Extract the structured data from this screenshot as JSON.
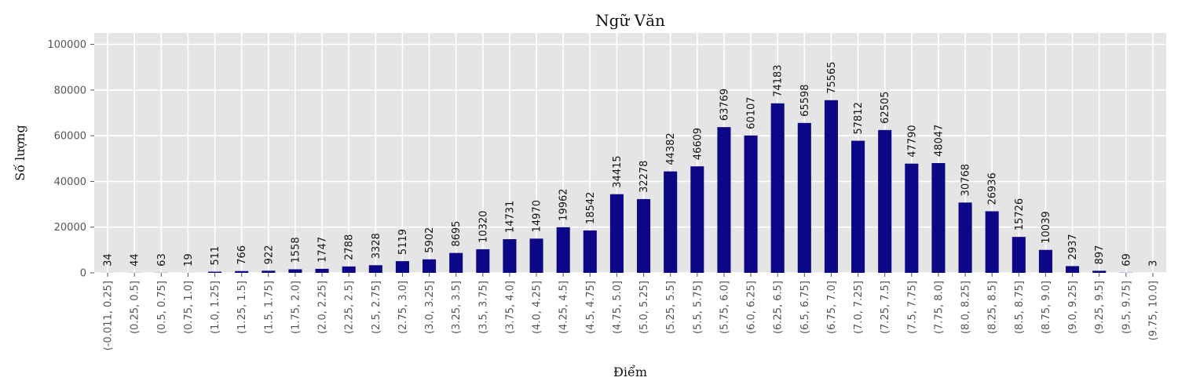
{
  "chart_data": {
    "type": "bar",
    "title": "Ngữ Văn",
    "xlabel": "Điểm",
    "ylabel": "Số lượng",
    "ylim": [
      0,
      105000
    ],
    "yticks": [
      0,
      20000,
      40000,
      60000,
      80000,
      100000
    ],
    "grid": true,
    "bar_color": "#0c0786",
    "background_color": "#e5e5e5",
    "categories": [
      "(-0.011, 0.25]",
      "(0.25, 0.5]",
      "(0.5, 0.75]",
      "(0.75, 1.0]",
      "(1.0, 1.25]",
      "(1.25, 1.5]",
      "(1.5, 1.75]",
      "(1.75, 2.0]",
      "(2.0, 2.25]",
      "(2.25, 2.5]",
      "(2.5, 2.75]",
      "(2.75, 3.0]",
      "(3.0, 3.25]",
      "(3.25, 3.5]",
      "(3.5, 3.75]",
      "(3.75, 4.0]",
      "(4.0, 4.25]",
      "(4.25, 4.5]",
      "(4.5, 4.75]",
      "(4.75, 5.0]",
      "(5.0, 5.25]",
      "(5.25, 5.5]",
      "(5.5, 5.75]",
      "(5.75, 6.0]",
      "(6.0, 6.25]",
      "(6.25, 6.5]",
      "(6.5, 6.75]",
      "(6.75, 7.0]",
      "(7.0, 7.25]",
      "(7.25, 7.5]",
      "(7.5, 7.75]",
      "(7.75, 8.0]",
      "(8.0, 8.25]",
      "(8.25, 8.5]",
      "(8.5, 8.75]",
      "(8.75, 9.0]",
      "(9.0, 9.25]",
      "(9.25, 9.5]",
      "(9.5, 9.75]",
      "(9.75, 10.0]"
    ],
    "values": [
      34,
      44,
      63,
      19,
      511,
      766,
      922,
      1558,
      1747,
      2788,
      3328,
      5119,
      5902,
      8695,
      10320,
      14731,
      14970,
      19962,
      18542,
      34415,
      32278,
      44382,
      46609,
      63769,
      60107,
      74183,
      65598,
      75565,
      57812,
      62505,
      47790,
      48047,
      30768,
      26936,
      15726,
      10039,
      2937,
      897,
      69,
      3
    ]
  }
}
